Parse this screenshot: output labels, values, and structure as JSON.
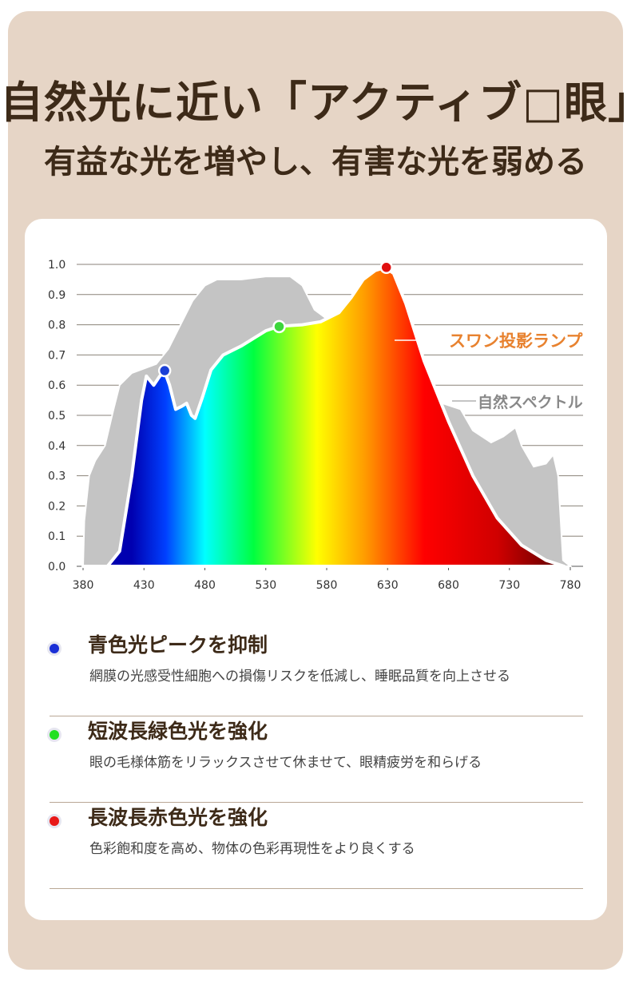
{
  "header": {
    "title": "自然光に近い「アクティブ□眼」",
    "subtitle": "有益な光を増やし、有害な光を弱める"
  },
  "chart_data": {
    "type": "area",
    "xlabel": "",
    "ylabel": "",
    "xlim": [
      380,
      780
    ],
    "ylim": [
      0,
      1.0
    ],
    "x_ticks": [
      "380",
      "430",
      "480",
      "530",
      "580",
      "630",
      "680",
      "730",
      "780"
    ],
    "y_ticks": [
      "0.0",
      "0.1",
      "0.2",
      "0.3",
      "0.4",
      "0.5",
      "0.6",
      "0.7",
      "0.8",
      "0.9",
      "1.0"
    ],
    "grid": true,
    "series": [
      {
        "name": "自然スペクトル",
        "color": "#c4c4c4",
        "points": [
          [
            380,
            0
          ],
          [
            381,
            0.15
          ],
          [
            385,
            0.3
          ],
          [
            390,
            0.35
          ],
          [
            398,
            0.4
          ],
          [
            405,
            0.52
          ],
          [
            410,
            0.6
          ],
          [
            420,
            0.64
          ],
          [
            440,
            0.67
          ],
          [
            450,
            0.72
          ],
          [
            460,
            0.8
          ],
          [
            470,
            0.88
          ],
          [
            480,
            0.93
          ],
          [
            490,
            0.95
          ],
          [
            510,
            0.95
          ],
          [
            530,
            0.96
          ],
          [
            550,
            0.96
          ],
          [
            560,
            0.93
          ],
          [
            570,
            0.85
          ],
          [
            580,
            0.82
          ],
          [
            620,
            0.8
          ],
          [
            650,
            0.7
          ],
          [
            665,
            0.62
          ],
          [
            675,
            0.54
          ],
          [
            690,
            0.52
          ],
          [
            700,
            0.45
          ],
          [
            715,
            0.41
          ],
          [
            725,
            0.43
          ],
          [
            735,
            0.46
          ],
          [
            740,
            0.4
          ],
          [
            750,
            0.33
          ],
          [
            760,
            0.34
          ],
          [
            766,
            0.37
          ],
          [
            770,
            0.3
          ],
          [
            774,
            0.02
          ],
          [
            780,
            0
          ]
        ]
      },
      {
        "name": "スワン投影ランプ",
        "color": "#e8822f",
        "points": [
          [
            380,
            0
          ],
          [
            400,
            0
          ],
          [
            410,
            0.05
          ],
          [
            420,
            0.3
          ],
          [
            428,
            0.55
          ],
          [
            432,
            0.63
          ],
          [
            438,
            0.6
          ],
          [
            443,
            0.63
          ],
          [
            447,
            0.645
          ],
          [
            451,
            0.6
          ],
          [
            456,
            0.52
          ],
          [
            461,
            0.53
          ],
          [
            465,
            0.54
          ],
          [
            469,
            0.5
          ],
          [
            472,
            0.49
          ],
          [
            478,
            0.56
          ],
          [
            485,
            0.65
          ],
          [
            495,
            0.7
          ],
          [
            510,
            0.73
          ],
          [
            530,
            0.78
          ],
          [
            541,
            0.795
          ],
          [
            560,
            0.8
          ],
          [
            575,
            0.81
          ],
          [
            590,
            0.84
          ],
          [
            600,
            0.89
          ],
          [
            610,
            0.95
          ],
          [
            620,
            0.98
          ],
          [
            628,
            0.99
          ],
          [
            635,
            0.97
          ],
          [
            645,
            0.87
          ],
          [
            660,
            0.68
          ],
          [
            680,
            0.48
          ],
          [
            700,
            0.3
          ],
          [
            720,
            0.16
          ],
          [
            740,
            0.07
          ],
          [
            760,
            0.02
          ],
          [
            775,
            0
          ]
        ]
      }
    ],
    "markers": [
      {
        "x": 447,
        "y": 0.648,
        "color": "#1a3fd6"
      },
      {
        "x": 541,
        "y": 0.794,
        "color": "#3cd63c"
      },
      {
        "x": 629,
        "y": 0.99,
        "color": "#e01010"
      }
    ],
    "legend": [
      "スワン投影ランプ",
      "自然スペクトル"
    ],
    "legend_placement": "right"
  },
  "features": [
    {
      "title": "青色光ピークを抑制",
      "desc": "網膜の光感受性細胞への損傷リスクを低減し、睡眠品質を向上させる",
      "color": "#1a2fd6"
    },
    {
      "title": "短波長緑色光を強化",
      "desc": "眼の毛様体筋をリラックスさせて休ませて、眼精疲労を和らげる",
      "color": "#22e022"
    },
    {
      "title": "長波長赤色光を強化",
      "desc": "色彩飽和度を高め、物体の色彩再現性をより良くする",
      "color": "#e81818"
    }
  ]
}
